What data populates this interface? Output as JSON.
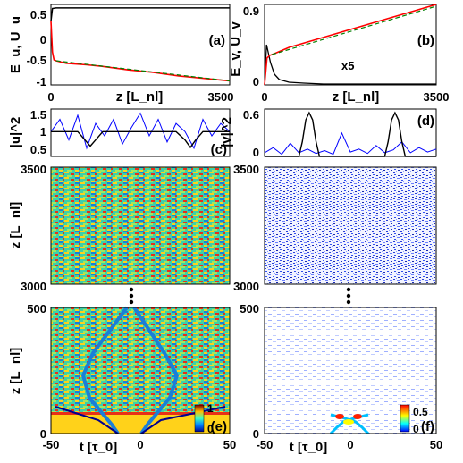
{
  "chart_data": [
    {
      "panel": "(a)",
      "type": "line",
      "ylabel": "E_u, U_u",
      "xlabel": "z [L_nl]",
      "xlim": [
        0,
        3500
      ],
      "ylim": [
        -1,
        0.6
      ],
      "x_ticks": [
        "0",
        "3500"
      ],
      "y_ticks": [
        "0.5",
        "0",
        "-0.5",
        "-1"
      ],
      "series": [
        {
          "color": "#000000",
          "x": [
            0,
            30,
            100,
            500,
            1000,
            1500,
            2000,
            2500,
            3000,
            3500
          ],
          "y": [
            0.27,
            0.52,
            0.53,
            0.53,
            0.53,
            0.53,
            0.53,
            0.53,
            0.53,
            0.53
          ]
        },
        {
          "color": "#ff0000",
          "x": [
            0,
            30,
            60,
            100,
            300,
            700,
            1000,
            1500,
            2000,
            2500,
            3000,
            3500
          ],
          "y": [
            0.27,
            -0.35,
            -0.5,
            -0.52,
            -0.57,
            -0.6,
            -0.63,
            -0.7,
            -0.75,
            -0.82,
            -0.87,
            -0.92
          ]
        },
        {
          "color": "#008000",
          "dashed": true,
          "x": [
            100,
            3500
          ],
          "y": [
            -0.52,
            -0.92
          ]
        }
      ]
    },
    {
      "panel": "(b)",
      "type": "line",
      "ylabel": "E_v, U_v",
      "xlabel": "z [L_nl]",
      "xlim": [
        0,
        3500
      ],
      "ylim": [
        0,
        0.9
      ],
      "x_ticks": [
        "0",
        "3500"
      ],
      "y_ticks": [
        "0.9",
        "0"
      ],
      "annotation": "x5",
      "series": [
        {
          "color": "#000000",
          "x": [
            0,
            40,
            80,
            120,
            200,
            300,
            500,
            800,
            1200,
            2000,
            3500
          ],
          "y": [
            0.0,
            0.45,
            0.35,
            0.25,
            0.12,
            0.06,
            0.03,
            0.02,
            0.01,
            0.01,
            0.01
          ]
        },
        {
          "color": "#ff0000",
          "x": [
            0,
            50,
            100,
            200,
            500,
            1000,
            1500,
            2000,
            2500,
            3000,
            3500
          ],
          "y": [
            0.0,
            0.3,
            0.33,
            0.35,
            0.42,
            0.5,
            0.58,
            0.66,
            0.74,
            0.82,
            0.9
          ]
        },
        {
          "color": "#008000",
          "dashed": true,
          "x": [
            150,
            3500
          ],
          "y": [
            0.34,
            0.88
          ]
        }
      ]
    },
    {
      "panel": "(c)",
      "type": "line",
      "ylabel": "|u|^2",
      "xlim": [
        -50,
        50
      ],
      "ylim": [
        0.4,
        1.55
      ],
      "y_ticks": [
        "1.5",
        "1",
        "0.5"
      ],
      "series": [
        {
          "name_hidden": "noisy",
          "color": "#0000ff",
          "x": [
            -50,
            -45,
            -40,
            -35,
            -30,
            -25,
            -20,
            -15,
            -10,
            -5,
            0,
            5,
            10,
            15,
            20,
            25,
            30,
            35,
            40,
            45,
            50
          ],
          "y": [
            1.0,
            1.3,
            0.8,
            1.4,
            0.6,
            1.2,
            0.9,
            1.3,
            0.7,
            1.1,
            1.45,
            0.9,
            1.3,
            0.75,
            1.2,
            1.0,
            0.6,
            1.3,
            0.9,
            1.2,
            1.0
          ]
        },
        {
          "name_hidden": "dark",
          "color": "#000000",
          "x": [
            -50,
            -35,
            -31,
            -28,
            -25,
            -21,
            -10,
            10,
            20,
            25,
            28,
            31,
            35,
            50
          ],
          "y": [
            1.0,
            1.0,
            0.8,
            0.65,
            0.8,
            1.0,
            1.0,
            1.0,
            1.0,
            0.8,
            0.62,
            0.8,
            1.0,
            1.0
          ]
        }
      ]
    },
    {
      "panel": "(d)",
      "type": "line",
      "ylabel": "|v|^2",
      "xlim": [
        -50,
        50
      ],
      "ylim": [
        0,
        0.65
      ],
      "y_ticks": [
        "0.6",
        "0"
      ],
      "series": [
        {
          "name_hidden": "noisy",
          "color": "#0000ff",
          "x": [
            -50,
            -45,
            -40,
            -35,
            -30,
            -25,
            -20,
            -15,
            -10,
            -5,
            0,
            5,
            10,
            15,
            20,
            25,
            30,
            35,
            40,
            45,
            50
          ],
          "y": [
            0.05,
            0.12,
            0.03,
            0.18,
            0.05,
            0.1,
            0.04,
            0.08,
            0.03,
            0.32,
            0.06,
            0.1,
            0.04,
            0.15,
            0.05,
            0.09,
            0.2,
            0.05,
            0.12,
            0.06,
            0.1
          ]
        },
        {
          "name_hidden": "bright",
          "color": "#000000",
          "x": [
            -50,
            -30,
            -28,
            -26,
            -24,
            -22,
            -20,
            -18,
            -10,
            10,
            20,
            22,
            24,
            26,
            28,
            30,
            32,
            50
          ],
          "y": [
            0.0,
            0.0,
            0.2,
            0.5,
            0.6,
            0.5,
            0.2,
            0.0,
            0.0,
            0.0,
            0.0,
            0.2,
            0.5,
            0.6,
            0.5,
            0.2,
            0.0,
            0.0
          ]
        }
      ]
    },
    {
      "panel": "u-top",
      "type": "heatmap",
      "ylabel": "z [L_nl]",
      "ylim": [
        3000,
        3500
      ],
      "y_ticks": [
        "3500",
        "3000"
      ],
      "xlim": [
        -50,
        50
      ]
    },
    {
      "panel": "v-top",
      "type": "heatmap",
      "ylim": [
        3000,
        3500
      ],
      "y_ticks": [
        "3500",
        "3000"
      ],
      "xlim": [
        -50,
        50
      ]
    },
    {
      "panel": "(e)",
      "type": "heatmap",
      "ylabel": "z [L_nl]",
      "xlabel": "t [τ_0]",
      "xlim": [
        -50,
        50
      ],
      "ylim": [
        0,
        500
      ],
      "x_ticks": [
        "-50",
        "0",
        "50"
      ],
      "y_ticks": [
        "500",
        "0"
      ],
      "colorbar_ticks": [
        "1",
        "0"
      ]
    },
    {
      "panel": "(f)",
      "type": "heatmap",
      "xlabel": "t [τ_0]",
      "xlim": [
        -50,
        50
      ],
      "ylim": [
        0,
        500
      ],
      "x_ticks": [
        "-50",
        "0",
        "50"
      ],
      "y_ticks": [
        "500",
        "0"
      ],
      "colorbar_ticks": [
        "0.5",
        "0"
      ]
    }
  ],
  "colors": {
    "jet_dark_blue": "#00008f",
    "jet_cyan": "#00ffff",
    "jet_yellow": "#ffff00",
    "jet_red": "#ff0000",
    "mesh_blue": "#0000ff"
  }
}
